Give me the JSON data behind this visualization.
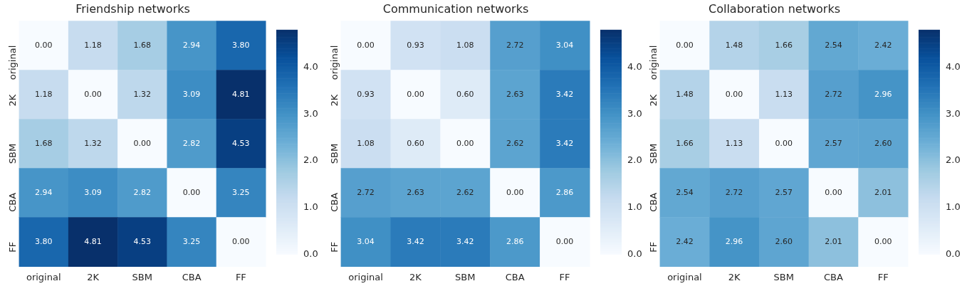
{
  "chart_data": [
    {
      "type": "heatmap",
      "title": "Friendship networks",
      "categories": [
        "original",
        "2K",
        "SBM",
        "CBA",
        "FF"
      ],
      "y_categories": [
        "original",
        "2K",
        "SBM",
        "CBA",
        "FF"
      ],
      "cells": [
        [
          0,
          1.18,
          1.68,
          2.94,
          3.8
        ],
        [
          1.18,
          0,
          1.32,
          3.09,
          4.81
        ],
        [
          1.68,
          1.32,
          0,
          2.82,
          4.53
        ],
        [
          2.94,
          3.09,
          2.82,
          0,
          3.25
        ],
        [
          3.8,
          4.81,
          4.53,
          3.25,
          0
        ]
      ],
      "cell_labels": [
        [
          "0.00",
          "1.18",
          "1.68",
          "2.94",
          "3.80"
        ],
        [
          "1.18",
          "0.00",
          "1.32",
          "3.09",
          "4.81"
        ],
        [
          "1.68",
          "1.32",
          "0.00",
          "2.82",
          "4.53"
        ],
        [
          "2.94",
          "3.09",
          "2.82",
          "0.00",
          "3.25"
        ],
        [
          "3.80",
          "4.81",
          "4.53",
          "3.25",
          "0.00"
        ]
      ],
      "clim": [
        0,
        4.81
      ],
      "cticks": [
        {
          "value": 0,
          "label": "0.0"
        },
        {
          "value": 1,
          "label": "1.0"
        },
        {
          "value": 2,
          "label": "2.0"
        },
        {
          "value": 3,
          "label": "3.0"
        },
        {
          "value": 4,
          "label": "4.0"
        }
      ]
    },
    {
      "type": "heatmap",
      "title": "Communication networks",
      "categories": [
        "original",
        "2K",
        "SBM",
        "CBA",
        "FF"
      ],
      "y_categories": [
        "original",
        "2K",
        "SBM",
        "CBA",
        "FF"
      ],
      "cells": [
        [
          0,
          0.93,
          1.08,
          2.72,
          3.04
        ],
        [
          0.93,
          0,
          0.6,
          2.63,
          3.42
        ],
        [
          1.08,
          0.6,
          0,
          2.62,
          3.42
        ],
        [
          2.72,
          2.63,
          2.62,
          0,
          2.86
        ],
        [
          3.04,
          3.42,
          3.42,
          2.86,
          0
        ]
      ],
      "cell_labels": [
        [
          "0.00",
          "0.93",
          "1.08",
          "2.72",
          "3.04"
        ],
        [
          "0.93",
          "0.00",
          "0.60",
          "2.63",
          "3.42"
        ],
        [
          "1.08",
          "0.60",
          "0.00",
          "2.62",
          "3.42"
        ],
        [
          "2.72",
          "2.63",
          "2.62",
          "0.00",
          "2.86"
        ],
        [
          "3.04",
          "3.42",
          "3.42",
          "2.86",
          "0.00"
        ]
      ],
      "clim": [
        0,
        4.81
      ],
      "cticks": [
        {
          "value": 0,
          "label": "0.0"
        },
        {
          "value": 1,
          "label": "1.0"
        },
        {
          "value": 2,
          "label": "2.0"
        },
        {
          "value": 3,
          "label": "3.0"
        },
        {
          "value": 4,
          "label": "4.0"
        }
      ]
    },
    {
      "type": "heatmap",
      "title": "Collaboration networks",
      "categories": [
        "original",
        "2K",
        "SBM",
        "CBA",
        "FF"
      ],
      "y_categories": [
        "original",
        "2K",
        "SBM",
        "CBA",
        "FF"
      ],
      "cells": [
        [
          0,
          1.48,
          1.66,
          2.54,
          2.42
        ],
        [
          1.48,
          0,
          1.13,
          2.72,
          2.96
        ],
        [
          1.66,
          1.13,
          0,
          2.57,
          2.6
        ],
        [
          2.54,
          2.72,
          2.57,
          0,
          2.01
        ],
        [
          2.42,
          2.96,
          2.6,
          2.01,
          0
        ]
      ],
      "cell_labels": [
        [
          "0.00",
          "1.48",
          "1.66",
          "2.54",
          "2.42"
        ],
        [
          "1.48",
          "0.00",
          "1.13",
          "2.72",
          "2.96"
        ],
        [
          "1.66",
          "1.13",
          "0.00",
          "2.57",
          "2.60"
        ],
        [
          "2.54",
          "2.72",
          "2.57",
          "0.00",
          "2.01"
        ],
        [
          "2.42",
          "2.96",
          "2.60",
          "2.01",
          "0.00"
        ]
      ],
      "clim": [
        0,
        4.81
      ],
      "cticks": [
        {
          "value": 0,
          "label": "0.0"
        },
        {
          "value": 1,
          "label": "1.0"
        },
        {
          "value": 2,
          "label": "2.0"
        },
        {
          "value": 3,
          "label": "3.0"
        },
        {
          "value": 4,
          "label": "4.0"
        }
      ]
    }
  ]
}
